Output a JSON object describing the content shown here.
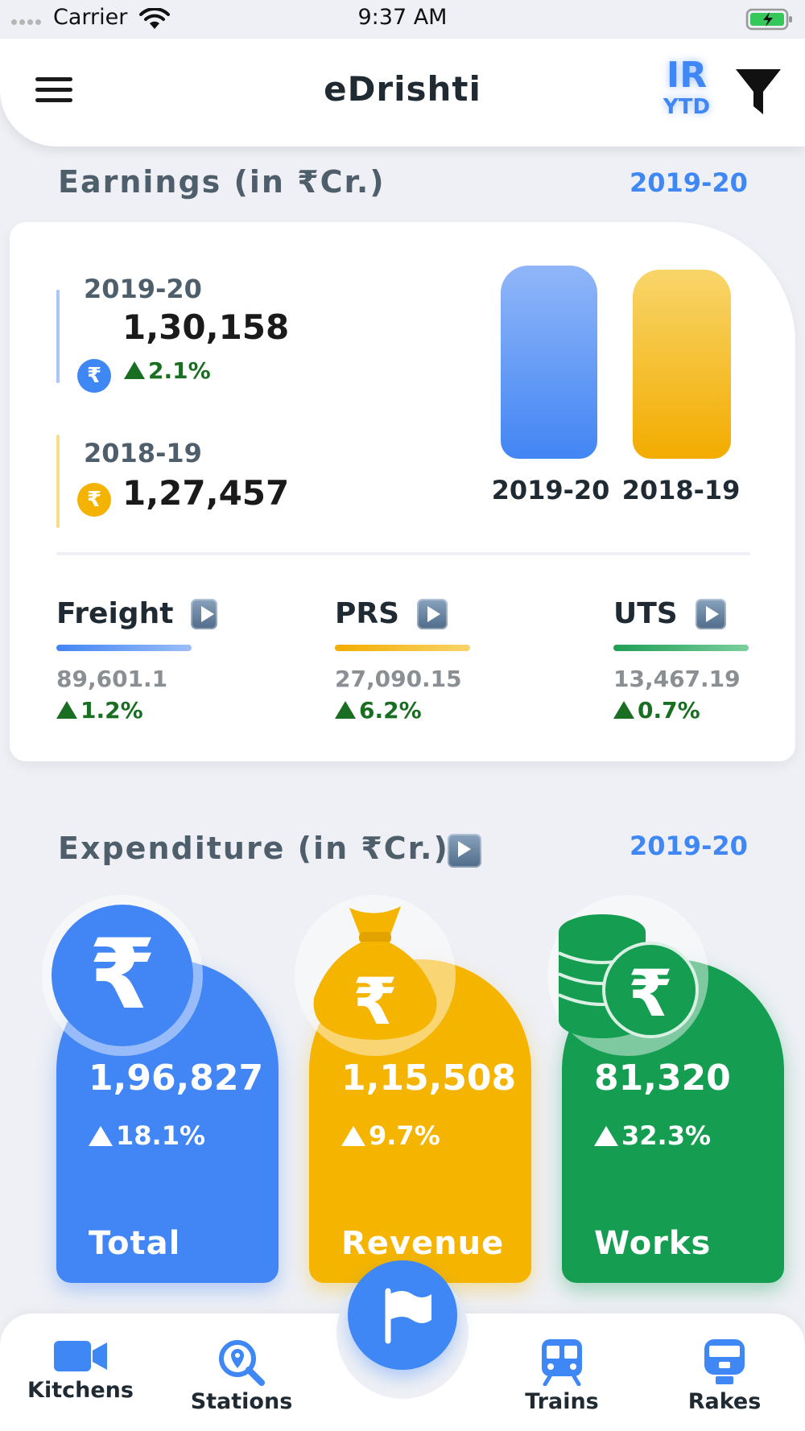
{
  "status_bar": {
    "carrier": "Carrier",
    "time": "9:37 AM"
  },
  "header": {
    "title": "eDrishti",
    "scope": "IR",
    "period": "YTD"
  },
  "earnings": {
    "title": "Earnings (in ₹Cr.)",
    "year": "2019-20",
    "current": {
      "year": "2019-20",
      "value": "1,30,158",
      "growth": "2.1%",
      "color": "#3f87f5"
    },
    "previous": {
      "year": "2018-19",
      "value": "1,27,457",
      "color": "#f5b301"
    },
    "bars": [
      {
        "label": "2019-20",
        "value": 130158
      },
      {
        "label": "2018-19",
        "value": 127457
      }
    ],
    "categories": [
      {
        "name": "Freight",
        "value": "89,601.1",
        "growth": "1.2%",
        "color": "#3f87f5"
      },
      {
        "name": "PRS",
        "value": "27,090.15",
        "growth": "6.2%",
        "color": "#f5b301"
      },
      {
        "name": "UTS",
        "value": "13,467.19",
        "growth": "0.7%",
        "color": "#1e9e55"
      }
    ]
  },
  "expenditure": {
    "title": "Expenditure (in ₹Cr.)",
    "year": "2019-20",
    "cards": [
      {
        "label": "Total",
        "value": "1,96,827",
        "growth": "18.1%",
        "color": "#4285f4",
        "icon": "rupee-icon"
      },
      {
        "label": "Revenue",
        "value": "1,15,508",
        "growth": "9.7%",
        "color": "#f4b400",
        "icon": "money-bag-icon"
      },
      {
        "label": "Works",
        "value": "81,320",
        "growth": "32.3%",
        "color": "#159d52",
        "icon": "coins-icon"
      }
    ]
  },
  "bottom_nav": {
    "items": [
      {
        "label": "Kitchens",
        "icon": "video-camera-icon"
      },
      {
        "label": "Stations",
        "icon": "location-search-icon"
      },
      {
        "label": "Trains",
        "icon": "train-icon"
      },
      {
        "label": "Rakes",
        "icon": "rake-icon"
      }
    ],
    "fab_icon": "flag-icon"
  }
}
